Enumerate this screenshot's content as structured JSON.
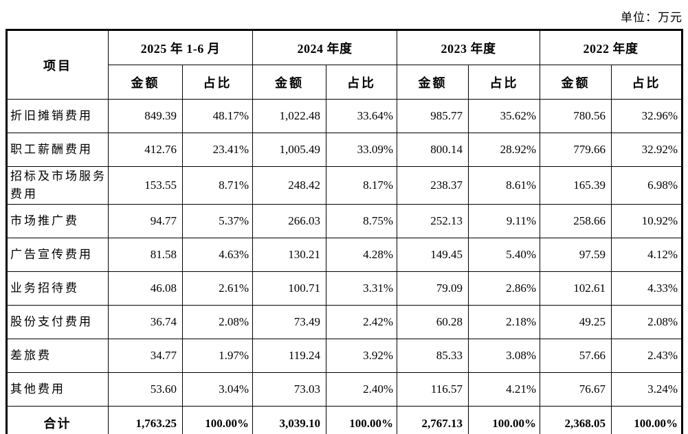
{
  "unit_label": "单位：万元",
  "table": {
    "item_header": "项目",
    "periods": [
      {
        "label": "2025 年 1-6 月"
      },
      {
        "label": "2024 年度"
      },
      {
        "label": "2023 年度"
      },
      {
        "label": "2022 年度"
      }
    ],
    "sub_headers": {
      "amount": "金额",
      "ratio": "占比"
    },
    "rows": [
      {
        "item": "折旧摊销费用",
        "values": [
          "849.39",
          "48.17%",
          "1,022.48",
          "33.64%",
          "985.77",
          "35.62%",
          "780.56",
          "32.96%"
        ]
      },
      {
        "item": "职工薪酬费用",
        "values": [
          "412.76",
          "23.41%",
          "1,005.49",
          "33.09%",
          "800.14",
          "28.92%",
          "779.66",
          "32.92%"
        ]
      },
      {
        "item": "招标及市场服务费用",
        "values": [
          "153.55",
          "8.71%",
          "248.42",
          "8.17%",
          "238.37",
          "8.61%",
          "165.39",
          "6.98%"
        ]
      },
      {
        "item": "市场推广费",
        "values": [
          "94.77",
          "5.37%",
          "266.03",
          "8.75%",
          "252.13",
          "9.11%",
          "258.66",
          "10.92%"
        ]
      },
      {
        "item": "广告宣传费用",
        "values": [
          "81.58",
          "4.63%",
          "130.21",
          "4.28%",
          "149.45",
          "5.40%",
          "97.59",
          "4.12%"
        ]
      },
      {
        "item": "业务招待费",
        "values": [
          "46.08",
          "2.61%",
          "100.71",
          "3.31%",
          "79.09",
          "2.86%",
          "102.61",
          "4.33%"
        ]
      },
      {
        "item": "股份支付费用",
        "values": [
          "36.74",
          "2.08%",
          "73.49",
          "2.42%",
          "60.28",
          "2.18%",
          "49.25",
          "2.08%"
        ]
      },
      {
        "item": "差旅费",
        "values": [
          "34.77",
          "1.97%",
          "119.24",
          "3.92%",
          "85.33",
          "3.08%",
          "57.66",
          "2.43%"
        ]
      },
      {
        "item": "其他费用",
        "values": [
          "53.60",
          "3.04%",
          "73.03",
          "2.40%",
          "116.57",
          "4.21%",
          "76.67",
          "3.24%"
        ]
      }
    ],
    "total_row": {
      "item": "合计",
      "values": [
        "1,763.25",
        "100.00%",
        "3,039.10",
        "100.00%",
        "2,767.13",
        "100.00%",
        "2,368.05",
        "100.00%"
      ]
    }
  }
}
